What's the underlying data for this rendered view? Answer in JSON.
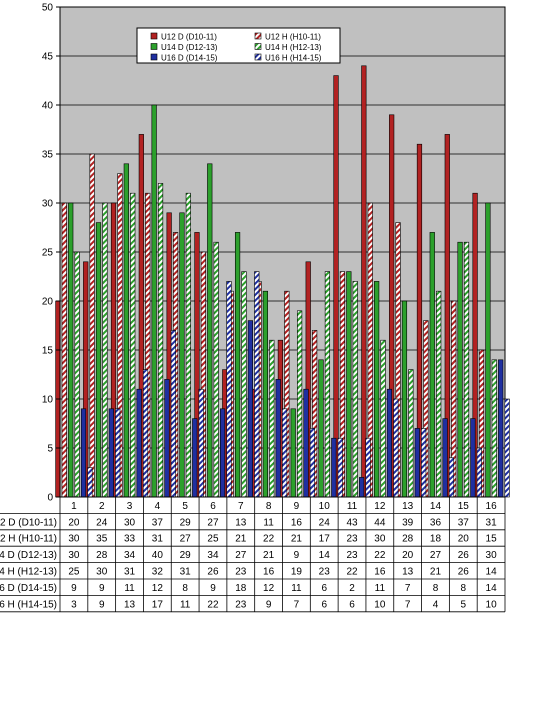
{
  "chart_data": {
    "type": "bar",
    "categories": [
      "1",
      "2",
      "3",
      "4",
      "5",
      "6",
      "7",
      "8",
      "9",
      "10",
      "11",
      "12",
      "13",
      "14",
      "15",
      "16"
    ],
    "ylim": [
      0,
      50
    ],
    "yticks": [
      0,
      5,
      10,
      15,
      20,
      25,
      30,
      35,
      40,
      45,
      50
    ],
    "grid": true,
    "legend_position": "top-center",
    "plot_background": "#c0c0c0",
    "series": [
      {
        "name": "U12 D (D10-11)",
        "table_label": "2 D (D10-11)",
        "color": "#b22222",
        "pattern": "solid",
        "values": [
          20,
          24,
          30,
          37,
          29,
          27,
          13,
          11,
          16,
          24,
          43,
          44,
          39,
          36,
          37,
          31
        ]
      },
      {
        "name": "U12 H (H10-11)",
        "table_label": "2 H (H10-11)",
        "color": "#b22222",
        "pattern": "hatch",
        "values": [
          30,
          35,
          33,
          31,
          27,
          25,
          21,
          22,
          21,
          17,
          23,
          30,
          28,
          18,
          20,
          15
        ]
      },
      {
        "name": "U14 D (D12-13)",
        "table_label": "4 D (D12-13)",
        "color": "#2ca02c",
        "pattern": "solid",
        "values": [
          30,
          28,
          34,
          40,
          29,
          34,
          27,
          21,
          9,
          14,
          23,
          22,
          20,
          27,
          26,
          30
        ]
      },
      {
        "name": "U14 H (H12-13)",
        "table_label": "4 H (H12-13)",
        "color": "#2ca02c",
        "pattern": "hatch",
        "values": [
          25,
          30,
          31,
          32,
          31,
          26,
          23,
          16,
          19,
          23,
          22,
          16,
          13,
          21,
          26,
          14
        ]
      },
      {
        "name": "U16 D (D14-15)",
        "table_label": "6 D (D14-15)",
        "color": "#1f2fa0",
        "pattern": "solid",
        "values": [
          9,
          9,
          11,
          12,
          8,
          9,
          18,
          12,
          11,
          6,
          2,
          11,
          7,
          8,
          8,
          14
        ]
      },
      {
        "name": "U16 H (H14-15)",
        "table_label": "6 H (H14-15)",
        "color": "#1f2fa0",
        "pattern": "hatch",
        "values": [
          3,
          9,
          13,
          17,
          11,
          22,
          23,
          9,
          7,
          6,
          6,
          10,
          7,
          4,
          5,
          10
        ]
      }
    ]
  }
}
